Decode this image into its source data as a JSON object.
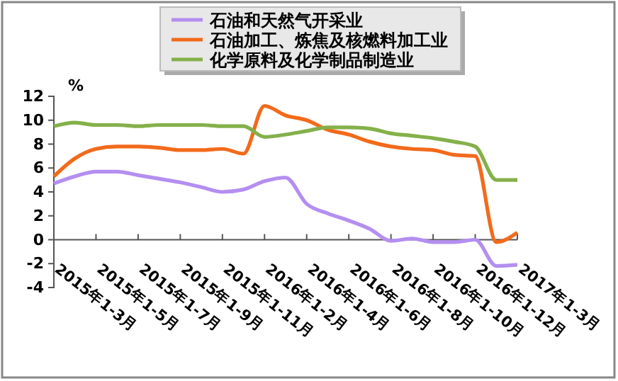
{
  "chart_data": {
    "type": "line",
    "ylabel": "%",
    "categories": [
      "2015年1-3月",
      null,
      "2015年1-5月",
      null,
      "2015年1-7月",
      null,
      "2015年1-9月",
      null,
      "2015年1-11月",
      null,
      "2016年1-2月",
      null,
      "2016年1-4月",
      null,
      "2016年1-6月",
      null,
      "2016年1-8月",
      null,
      "2016年1-10月",
      null,
      "2016年1-12月",
      null,
      "2017年1-3月"
    ],
    "series": [
      {
        "name": "石油和天然气开采业",
        "color": "#b48ef0",
        "values": [
          4.7,
          5.3,
          5.7,
          5.7,
          5.4,
          5.1,
          4.8,
          4.4,
          4.0,
          4.2,
          4.9,
          5.2,
          3.0,
          2.2,
          1.6,
          0.9,
          -0.1,
          0.1,
          -0.2,
          -0.2,
          0.0,
          -2.2,
          -2.1
        ]
      },
      {
        "name": "石油加工、炼焦及核燃料加工业",
        "color": "#f26a1b",
        "values": [
          5.3,
          6.8,
          7.6,
          7.8,
          7.8,
          7.7,
          7.5,
          7.5,
          7.6,
          7.2,
          11.2,
          10.4,
          10.0,
          9.2,
          8.8,
          8.2,
          7.8,
          7.6,
          7.5,
          7.1,
          7.0,
          -0.2,
          0.6
        ]
      },
      {
        "name": "化学原料及化学制品制造业",
        "color": "#84b04a",
        "values": [
          9.5,
          9.8,
          9.6,
          9.6,
          9.5,
          9.6,
          9.6,
          9.6,
          9.5,
          9.5,
          8.6,
          8.8,
          9.1,
          9.4,
          9.4,
          9.3,
          8.9,
          8.7,
          8.5,
          8.2,
          7.8,
          5.0,
          5.0
        ]
      }
    ],
    "ylim": [
      -4,
      12
    ],
    "yticks": [
      -4,
      -2,
      0,
      2,
      4,
      6,
      8,
      10,
      12
    ],
    "grid": false,
    "legend": "top",
    "marker": "none",
    "line_style": "solid"
  }
}
